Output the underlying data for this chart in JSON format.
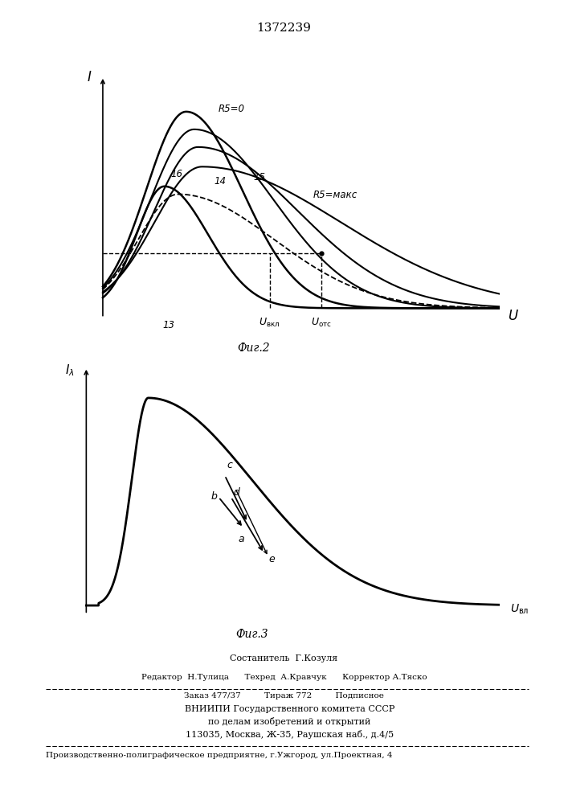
{
  "title": "1372239",
  "fig2_caption": "Фиг.2",
  "fig3_caption": "Фиг.3",
  "footer_sestavitel": "Состанитель  Г.Козуля",
  "footer_row1": "Редактор  Н.Тулица      Техред  А.Кравчук      Корректор А.Тяско",
  "footer_zakaz": "Заказ 477/37         Тираж 772         Подписное",
  "footer_vniip1": "    ВНИИПИ Государственного комитета СССР",
  "footer_vniip2": "    по делам изобретений и открытий",
  "footer_addr": "    113035, Москва, Ж-35, Раушская наб., д.4/5",
  "footer_prod": "Производственно-полиграфическое предприятне, г.Ужгород, ул.Проектная, 4"
}
